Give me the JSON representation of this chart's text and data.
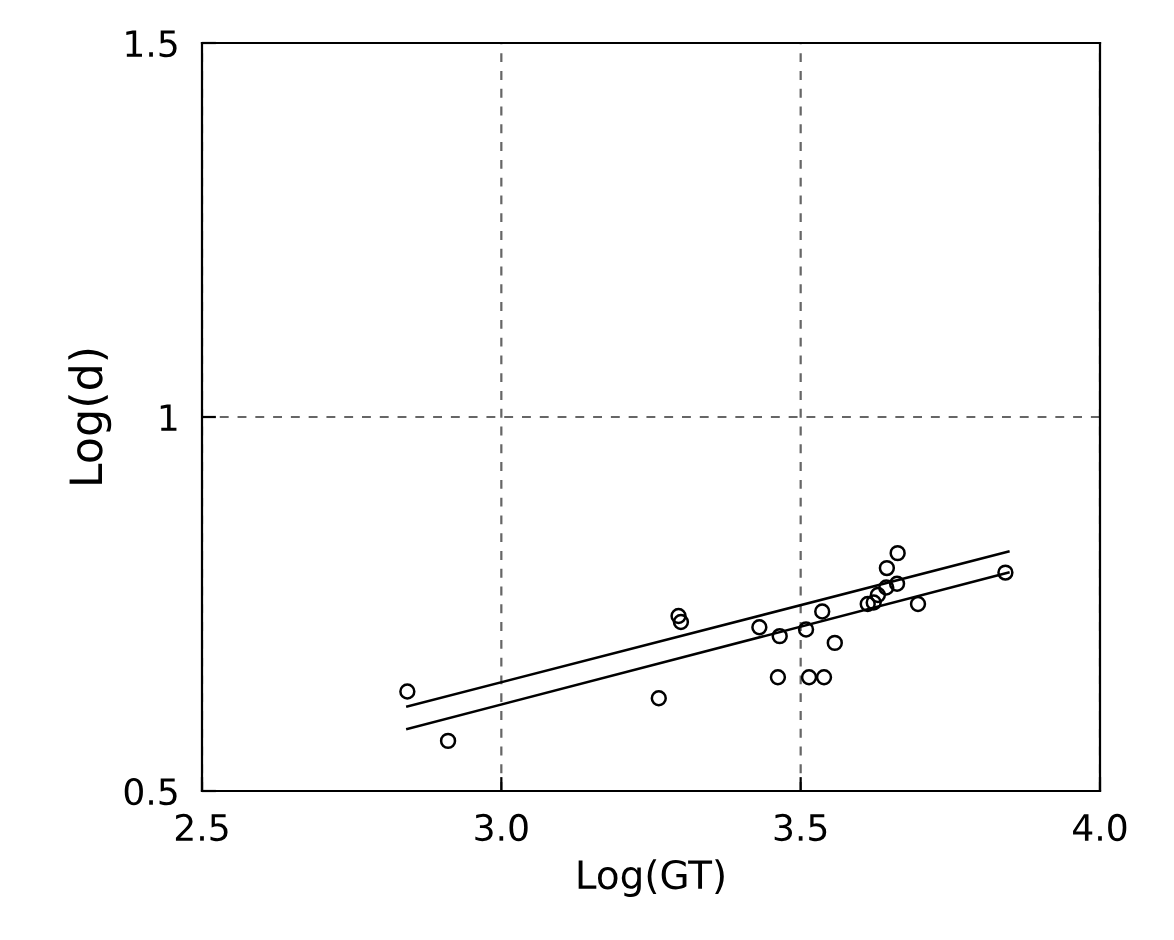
{
  "chart_data": {
    "type": "scatter",
    "xlabel": "Log(GT)",
    "ylabel": "Log(d)",
    "xlim": [
      2.5,
      4.0
    ],
    "ylim": [
      0.5,
      1.5
    ],
    "xticks": [
      {
        "value": 2.5,
        "label": "2.5"
      },
      {
        "value": 3.0,
        "label": "3.0"
      },
      {
        "value": 3.5,
        "label": "3.5"
      },
      {
        "value": 4.0,
        "label": "4.0"
      }
    ],
    "yticks": [
      {
        "value": 0.5,
        "label": "0.5"
      },
      1,
      {
        "value": 1.5,
        "label": "1.5"
      }
    ],
    "grid": true,
    "legend": false,
    "series": [
      {
        "marker": "circle",
        "color": "#000000",
        "x": [
          2.843,
          2.911,
          3.263,
          3.296,
          3.3,
          3.431,
          3.465,
          3.462,
          3.509,
          3.514,
          3.539,
          3.536,
          3.557,
          3.612,
          3.622,
          3.629,
          3.643,
          3.644,
          3.661,
          3.662,
          3.696,
          3.842
        ],
        "values": [
          0.633,
          0.567,
          0.624,
          0.734,
          0.726,
          0.719,
          0.707,
          0.652,
          0.716,
          0.652,
          0.652,
          0.74,
          0.698,
          0.75,
          0.752,
          0.762,
          0.772,
          0.798,
          0.777,
          0.818,
          0.75,
          0.792
        ]
      },
      {
        "type": "line",
        "marker": "none",
        "color": "#000000",
        "x": [
          2.843,
          3.847
        ],
        "values": [
          0.613,
          0.82
        ]
      },
      {
        "type": "line",
        "marker": "none",
        "color": "#000000",
        "x": [
          2.843,
          3.847
        ],
        "values": [
          0.583,
          0.792
        ]
      }
    ]
  }
}
